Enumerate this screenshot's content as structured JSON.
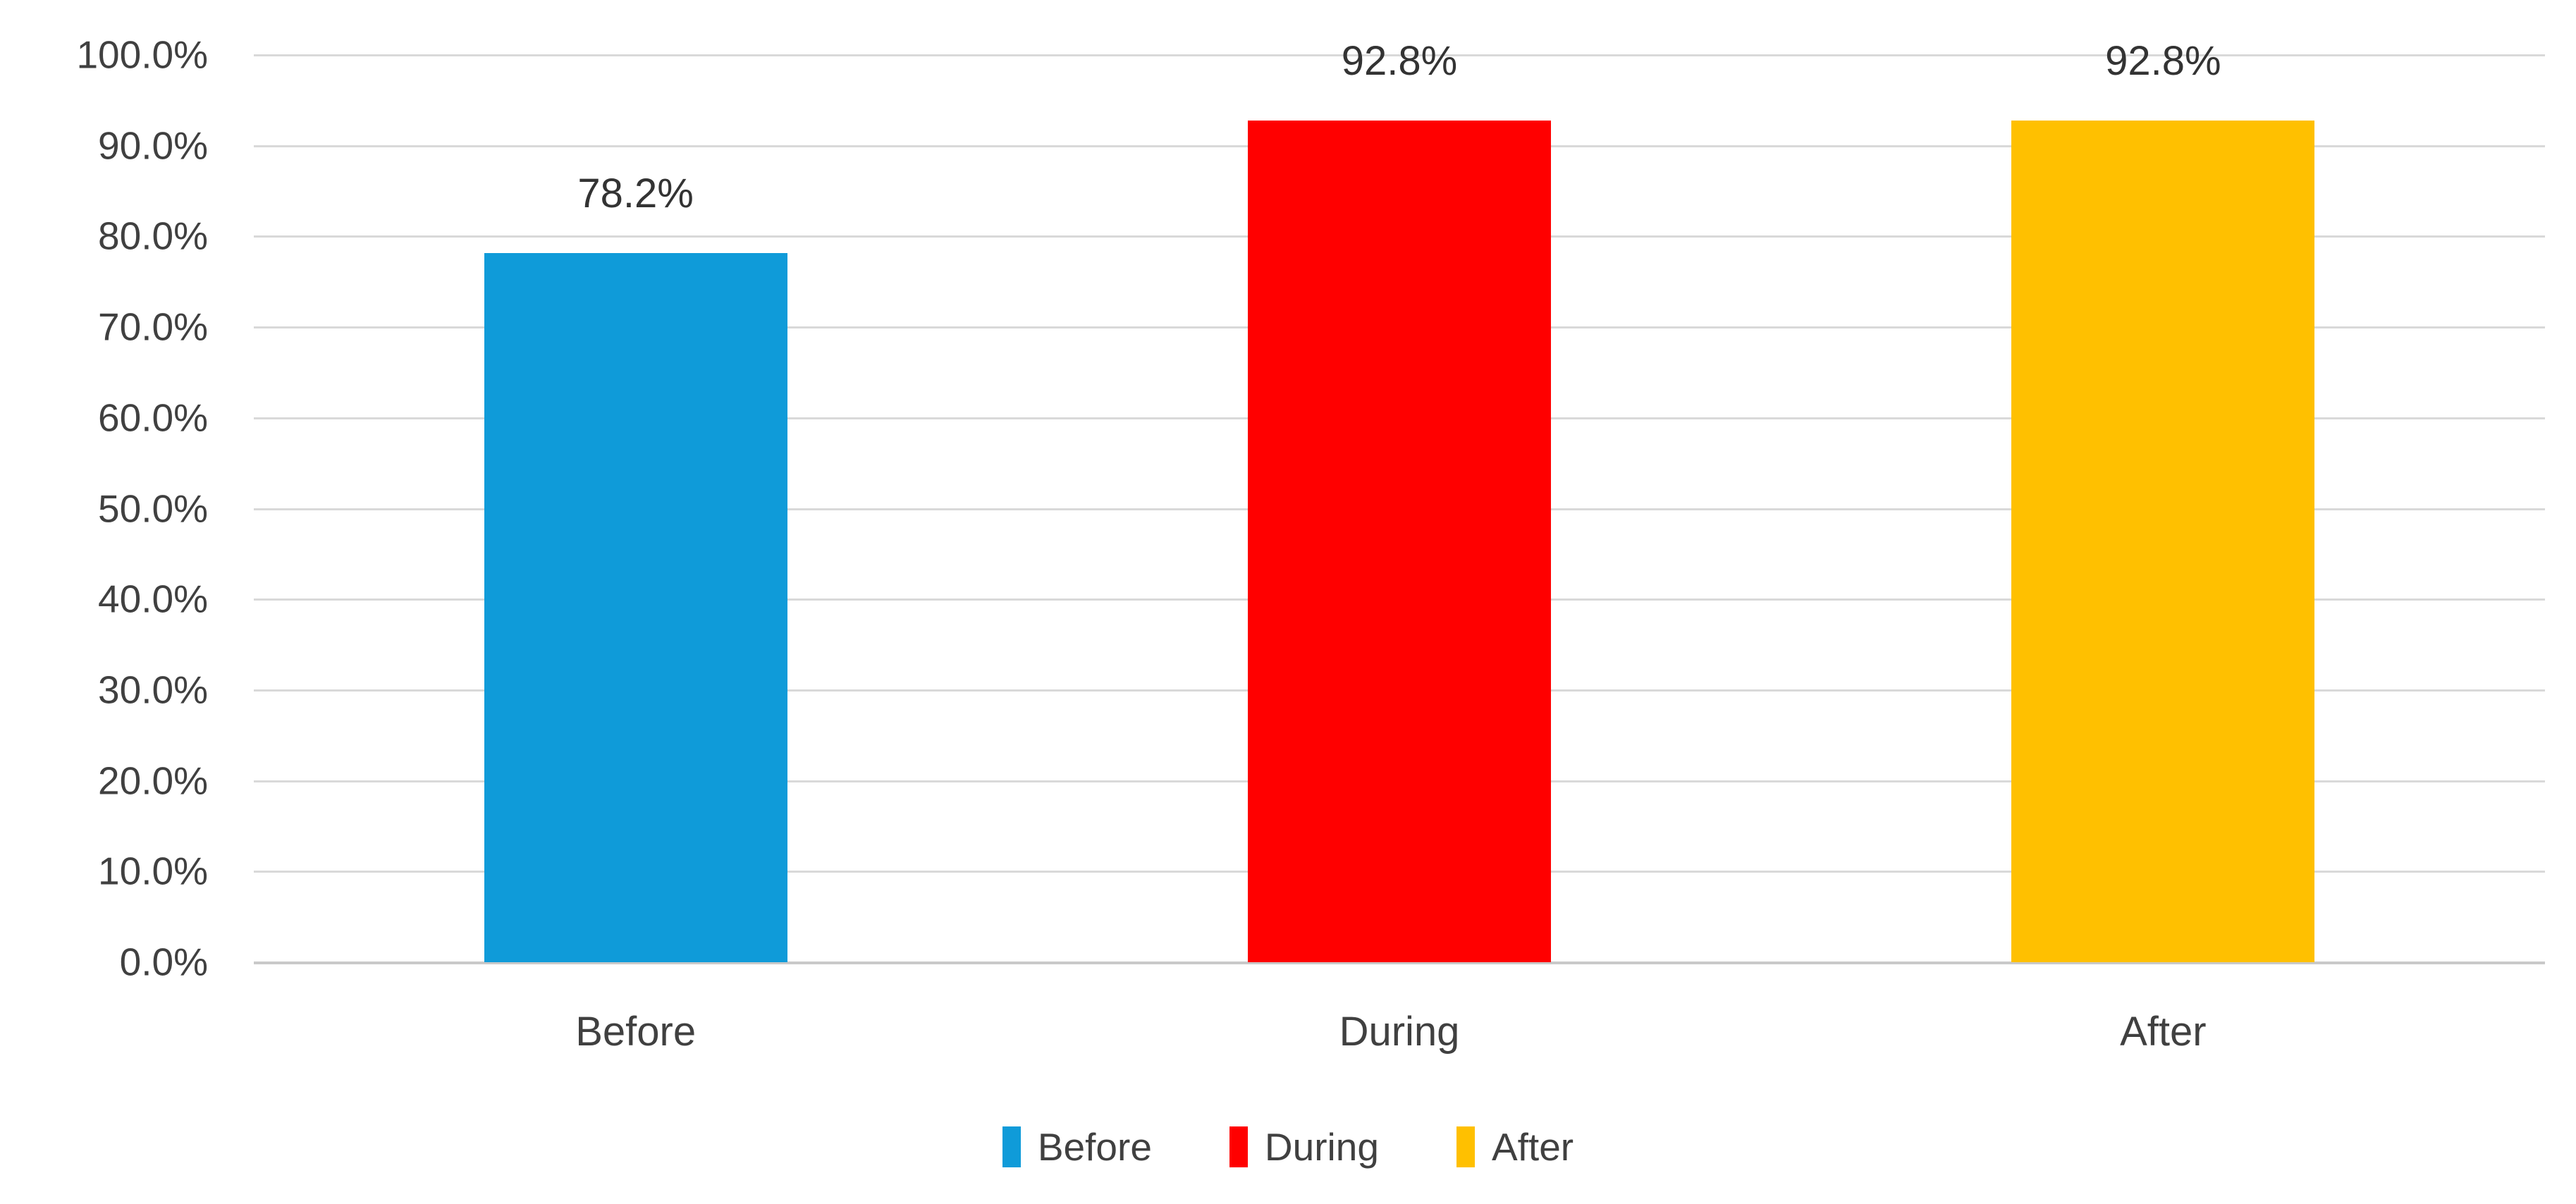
{
  "chart_data": {
    "type": "bar",
    "title": "",
    "xlabel": "",
    "ylabel": "",
    "categories": [
      "Before",
      "During",
      "After"
    ],
    "values": [
      78.2,
      92.8,
      92.8
    ],
    "data_labels": [
      "78.2%",
      "92.8%",
      "92.8%"
    ],
    "bar_colors": [
      "#0f9bd9",
      "#ff0000",
      "#ffc000"
    ],
    "ylim": [
      0,
      100
    ],
    "ytick_labels": [
      "100.0%",
      "90.0%",
      "80.0%",
      "70.0%",
      "60.0%",
      "50.0%",
      "40.0%",
      "30.0%",
      "20.0%",
      "10.0%",
      "0.0%"
    ],
    "grid": true,
    "legend_position": "bottom",
    "legend": [
      {
        "label": "Before",
        "color": "#0f9bd9"
      },
      {
        "label": "During",
        "color": "#ff0000"
      },
      {
        "label": "After",
        "color": "#ffc000"
      }
    ]
  }
}
